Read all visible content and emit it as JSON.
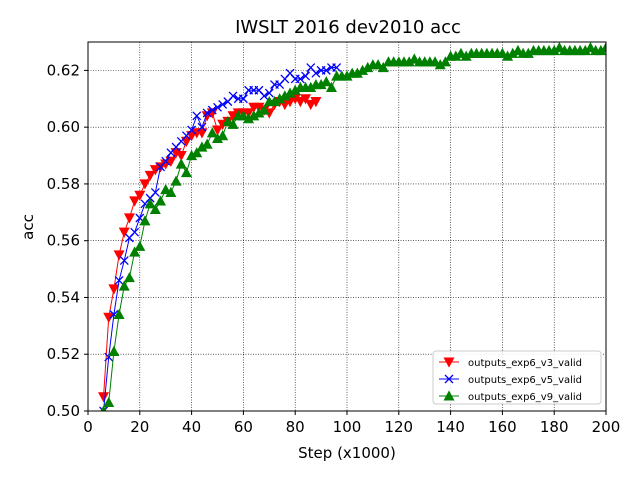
{
  "chart_data": {
    "type": "line",
    "title": "IWSLT 2016 dev2010 acc",
    "xlabel": "Step (x1000)",
    "ylabel": "acc",
    "xlim": [
      0,
      200
    ],
    "ylim": [
      0.5,
      0.63
    ],
    "xticks": [
      0,
      20,
      40,
      60,
      80,
      100,
      120,
      140,
      160,
      180,
      200
    ],
    "yticks": [
      0.5,
      0.52,
      0.54,
      0.56,
      0.58,
      0.6,
      0.62
    ],
    "xtick_labels": [
      "0",
      "20",
      "40",
      "60",
      "80",
      "100",
      "120",
      "140",
      "160",
      "180",
      "200"
    ],
    "ytick_labels": [
      "0.50",
      "0.52",
      "0.54",
      "0.56",
      "0.58",
      "0.60",
      "0.62"
    ],
    "grid": true,
    "legend_position": "lower-right",
    "series": [
      {
        "name": "outputs_exp6_v3_valid",
        "color": "#ff0000",
        "marker": "triangle-down",
        "x": [
          6,
          8,
          10,
          12,
          14,
          16,
          18,
          20,
          22,
          24,
          26,
          28,
          30,
          32,
          34,
          36,
          38,
          40,
          42,
          44,
          46,
          48,
          50,
          52,
          54,
          56,
          58,
          60,
          62,
          64,
          66,
          68,
          70,
          72,
          74,
          76,
          78,
          80,
          82,
          84,
          86,
          88
        ],
        "y": [
          0.505,
          0.533,
          0.543,
          0.555,
          0.563,
          0.568,
          0.574,
          0.576,
          0.58,
          0.583,
          0.585,
          0.586,
          0.587,
          0.588,
          0.591,
          0.59,
          0.595,
          0.597,
          0.598,
          0.598,
          0.604,
          0.605,
          0.599,
          0.601,
          0.602,
          0.604,
          0.605,
          0.605,
          0.605,
          0.607,
          0.607,
          0.606,
          0.605,
          0.608,
          0.609,
          0.608,
          0.609,
          0.61,
          0.609,
          0.61,
          0.608,
          0.609
        ]
      },
      {
        "name": "outputs_exp6_v5_valid",
        "color": "#0000ff",
        "marker": "x",
        "x": [
          6,
          8,
          10,
          12,
          14,
          16,
          18,
          20,
          22,
          24,
          26,
          28,
          30,
          32,
          34,
          36,
          38,
          40,
          42,
          44,
          46,
          48,
          50,
          52,
          54,
          56,
          58,
          60,
          62,
          64,
          66,
          68,
          70,
          72,
          74,
          76,
          78,
          80,
          82,
          84,
          86,
          88,
          90,
          92,
          94,
          96
        ],
        "y": [
          0.5,
          0.519,
          0.534,
          0.546,
          0.553,
          0.561,
          0.563,
          0.568,
          0.573,
          0.575,
          0.577,
          0.586,
          0.588,
          0.591,
          0.593,
          0.595,
          0.597,
          0.599,
          0.604,
          0.6,
          0.605,
          0.606,
          0.607,
          0.608,
          0.609,
          0.611,
          0.61,
          0.61,
          0.613,
          0.613,
          0.613,
          0.611,
          0.612,
          0.615,
          0.615,
          0.617,
          0.619,
          0.617,
          0.617,
          0.618,
          0.621,
          0.619,
          0.62,
          0.62,
          0.621,
          0.621
        ]
      },
      {
        "name": "outputs_exp6_v9_valid",
        "color": "#008000",
        "marker": "triangle-up",
        "x": [
          6,
          8,
          10,
          12,
          14,
          16,
          18,
          20,
          22,
          24,
          26,
          28,
          30,
          32,
          34,
          36,
          38,
          40,
          42,
          44,
          46,
          48,
          50,
          52,
          54,
          56,
          58,
          60,
          62,
          64,
          66,
          68,
          70,
          72,
          74,
          76,
          78,
          80,
          82,
          84,
          86,
          88,
          90,
          92,
          94,
          96,
          98,
          100,
          102,
          104,
          106,
          108,
          110,
          112,
          114,
          116,
          118,
          120,
          122,
          124,
          126,
          128,
          130,
          132,
          134,
          136,
          138,
          140,
          142,
          144,
          146,
          148,
          150,
          152,
          154,
          156,
          158,
          160,
          162,
          164,
          166,
          168,
          170,
          172,
          174,
          176,
          178,
          180,
          182,
          184,
          186,
          188,
          190,
          192,
          194,
          196,
          198,
          200
        ],
        "y": [
          0.5,
          0.503,
          0.521,
          0.534,
          0.544,
          0.547,
          0.556,
          0.558,
          0.567,
          0.573,
          0.571,
          0.574,
          0.578,
          0.577,
          0.581,
          0.587,
          0.584,
          0.59,
          0.591,
          0.593,
          0.594,
          0.598,
          0.596,
          0.597,
          0.602,
          0.601,
          0.604,
          0.604,
          0.603,
          0.604,
          0.605,
          0.606,
          0.609,
          0.609,
          0.61,
          0.611,
          0.612,
          0.613,
          0.614,
          0.614,
          0.614,
          0.615,
          0.615,
          0.616,
          0.614,
          0.618,
          0.618,
          0.618,
          0.619,
          0.619,
          0.62,
          0.621,
          0.622,
          0.622,
          0.621,
          0.623,
          0.623,
          0.623,
          0.623,
          0.623,
          0.624,
          0.623,
          0.623,
          0.623,
          0.623,
          0.622,
          0.623,
          0.625,
          0.625,
          0.626,
          0.625,
          0.626,
          0.626,
          0.626,
          0.626,
          0.626,
          0.626,
          0.626,
          0.625,
          0.626,
          0.627,
          0.626,
          0.626,
          0.627,
          0.627,
          0.627,
          0.627,
          0.627,
          0.628,
          0.627,
          0.627,
          0.627,
          0.627,
          0.627,
          0.628,
          0.627,
          0.627,
          0.628
        ]
      }
    ]
  }
}
